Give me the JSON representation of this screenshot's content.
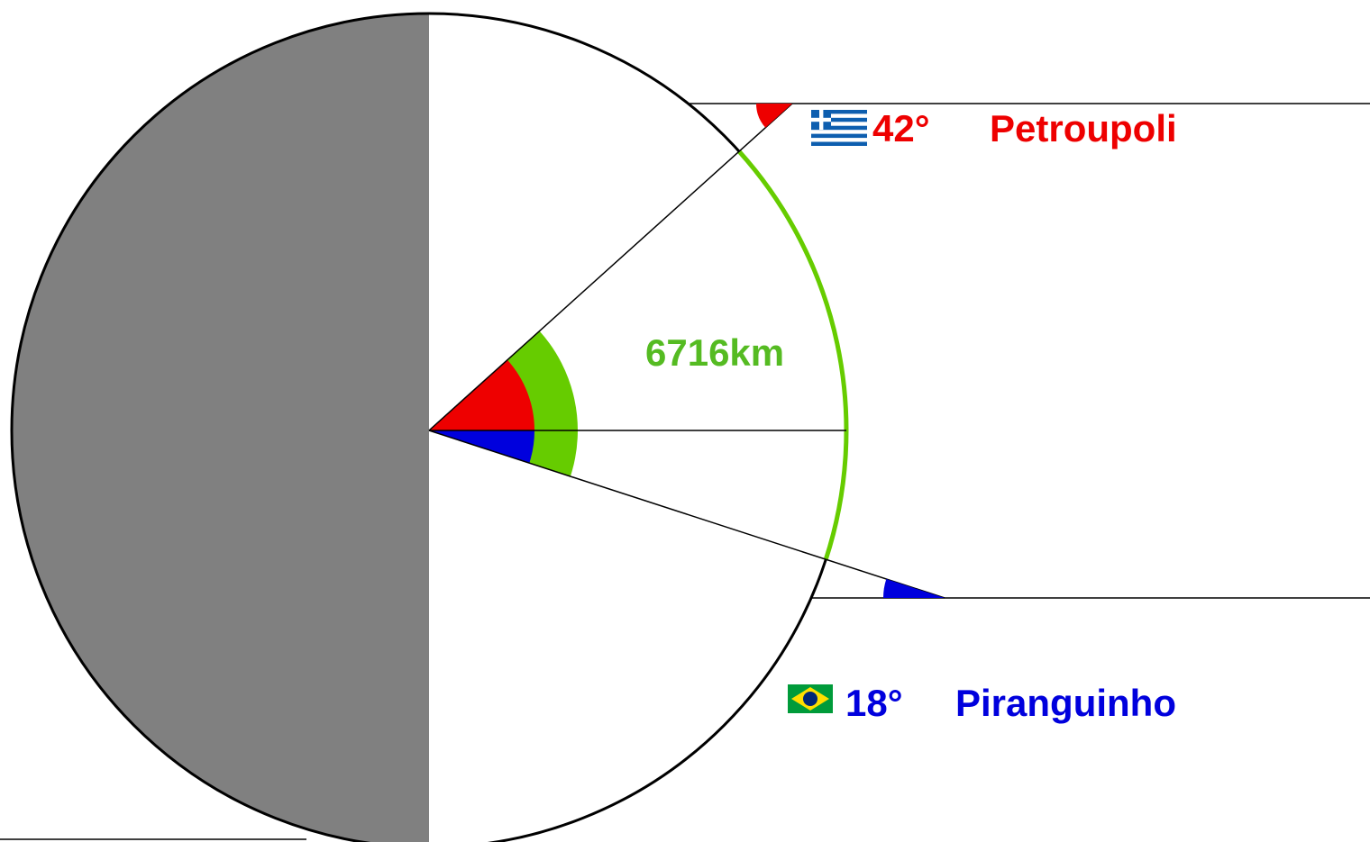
{
  "places": [
    {
      "angle": "42°",
      "name": "Petroupoli"
    },
    {
      "angle": "18°",
      "name": "Piranguinho"
    }
  ],
  "distance": "6716km"
}
